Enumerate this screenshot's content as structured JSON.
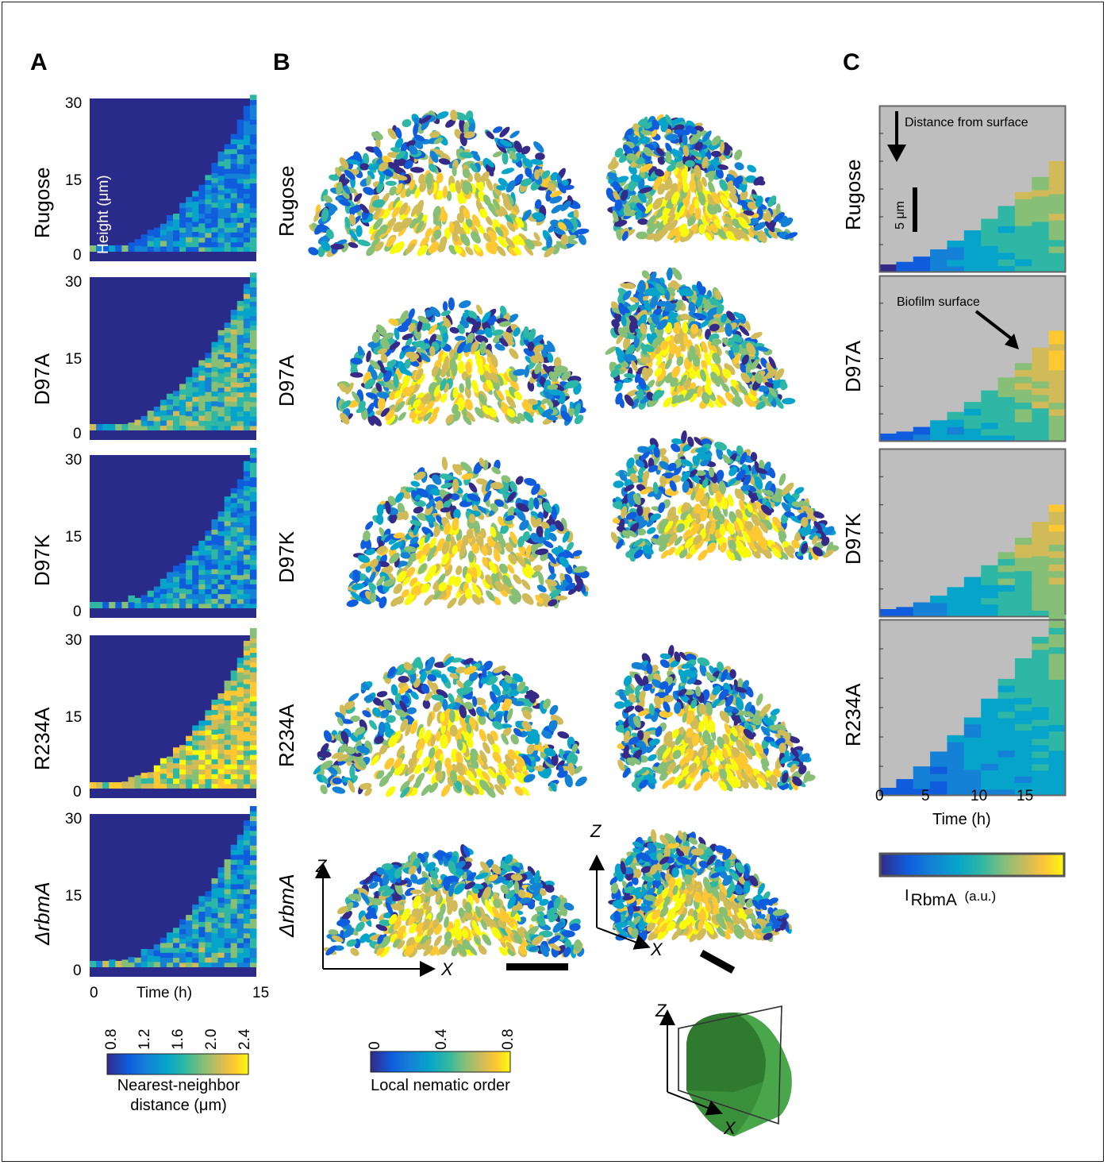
{
  "panels": {
    "a": "A",
    "b": "B",
    "c": "C"
  },
  "rows": [
    "Rugose",
    "D97A",
    "D97K",
    "R234A",
    "ΔrbmA"
  ],
  "panel_a": {
    "y_ticks": [
      "30",
      "15",
      "0"
    ],
    "inner_label": "Height (μm)",
    "x_ticks": [
      "0",
      "15"
    ],
    "xlabel": "Time (h)",
    "colorbar_ticks": [
      "0.8",
      "1.2",
      "1.6",
      "2.0",
      "2.4"
    ],
    "colorbar_label_1": "Nearest-neighbor",
    "colorbar_label_2": "distance (μm)"
  },
  "panel_b": {
    "axis_x": "X",
    "axis_z": "Z",
    "colorbar_ticks": [
      "0",
      "0.4",
      "0.8"
    ],
    "colorbar_label": "Local nematic order"
  },
  "panel_c": {
    "annotation_top": "Distance from surface",
    "scalebar": "5 μm",
    "annotation_surface": "Biofilm surface",
    "x_ticks": [
      "0",
      "5",
      "10",
      "15"
    ],
    "xlabel": "Time (h)",
    "colorbar_label_main": "I",
    "colorbar_label_sub": "RbmA",
    "colorbar_label_unit": "(a.u.)"
  },
  "colors": {
    "background_dark": "#2a2a8a",
    "surface_gray": "#bebebe",
    "cmap": [
      "#352a87",
      "#0f5cdd",
      "#1481d6",
      "#06a4ca",
      "#2eb7a4",
      "#87bf77",
      "#d1bb59",
      "#fec832",
      "#f9fb0e"
    ],
    "green": "#3a8f3a"
  }
}
